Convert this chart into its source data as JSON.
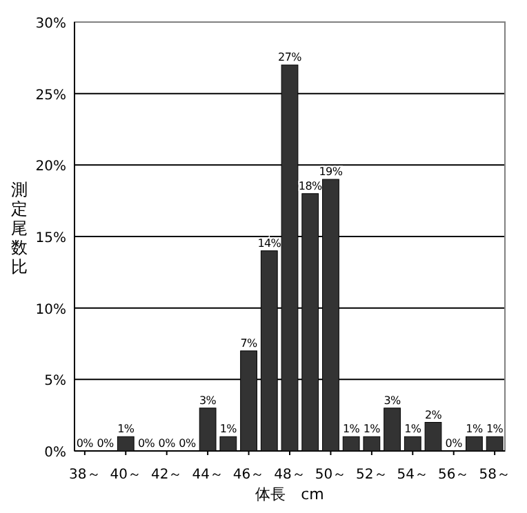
{
  "chart_data": {
    "type": "bar",
    "xlabel": "体長　cm",
    "ylabel": "測定尾数比",
    "categories": [
      "38～",
      null,
      "40～",
      null,
      "42～",
      null,
      "44～",
      null,
      "46～",
      null,
      "48～",
      null,
      "50～",
      null,
      "52～",
      null,
      "54～",
      null,
      "56～",
      null,
      "58～"
    ],
    "values": [
      0,
      0,
      1,
      0,
      0,
      0,
      3,
      1,
      7,
      14,
      27,
      18,
      19,
      1,
      1,
      3,
      1,
      2,
      0,
      1,
      1
    ],
    "value_labels": [
      "0%",
      "0%",
      "1%",
      "0%",
      "0%",
      "0%",
      "3%",
      "1%",
      "7%",
      "14%",
      "27%",
      "18%",
      "19%",
      "1%",
      "1%",
      "3%",
      "1%",
      "2%",
      "0%",
      "1%",
      "1%"
    ],
    "color": "#333333",
    "ylim": [
      0,
      30
    ],
    "yticks": [
      {
        "value": 0,
        "label": "0%"
      },
      {
        "value": 5,
        "label": "5%"
      },
      {
        "value": 10,
        "label": "10%"
      },
      {
        "value": 15,
        "label": "15%"
      },
      {
        "value": 20,
        "label": "20%"
      },
      {
        "value": 25,
        "label": "25%"
      },
      {
        "value": 30,
        "label": "30%"
      }
    ],
    "grid": "y"
  }
}
